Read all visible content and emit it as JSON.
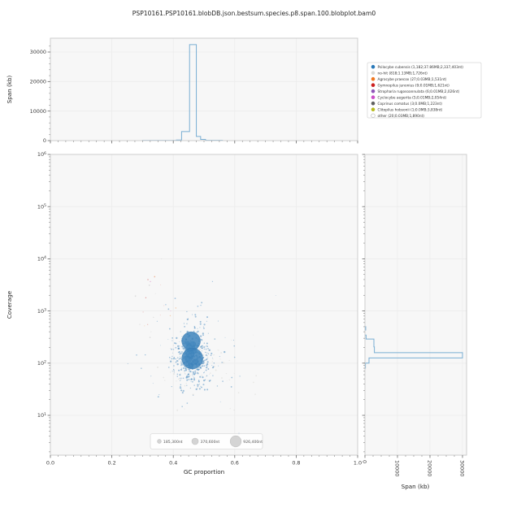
{
  "title": "PSP10161.PSP10161.blobDB.json.bestsum.species.p8.span.100.blobplot.bam0",
  "colors": {
    "panel_bg": "#f7f7f7",
    "grid": "#ececec",
    "spine": "#cccccc",
    "tick": "#8a8a8a",
    "tick_label": "#3b3b3b",
    "text": "#262626",
    "hist_line": "#79aed3",
    "blob_blue": "#3d84bc",
    "blob_edge": "#2a6ca5"
  },
  "axes": {
    "gc": {
      "label": "GC proportion",
      "range": [
        0.0,
        1.0
      ],
      "ticks": [
        0.0,
        0.2,
        0.4,
        0.6,
        0.8,
        1.0
      ],
      "minor_step": 0.025
    },
    "coverage": {
      "label": "Coverage",
      "log_range": [
        0.237,
        6
      ],
      "tick_exponents": [
        1,
        2,
        3,
        4,
        5,
        6
      ]
    },
    "span_top": {
      "label": "Span (kb)",
      "range": [
        0,
        34700
      ],
      "ticks": [
        0,
        10000,
        20000,
        30000
      ],
      "minor_step": 2000
    },
    "span_right": {
      "label": "Span (kb)",
      "range": [
        0,
        31250
      ],
      "ticks": [
        0,
        10000,
        20000,
        30000
      ],
      "minor_step": 2500
    }
  },
  "chart_data": [
    {
      "type": "bar",
      "subtype": "step-histogram",
      "panel": "top",
      "title": "Span (kb) summed per GC bin",
      "xlabel": "GC proportion",
      "ylabel": "Span (kb)",
      "ylim": [
        0,
        34700
      ],
      "grid": true,
      "bins": [
        {
          "x0": 0.3,
          "x1": 0.41,
          "value": 60
        },
        {
          "x0": 0.41,
          "x1": 0.427,
          "value": 220
        },
        {
          "x0": 0.427,
          "x1": 0.453,
          "value": 3050
        },
        {
          "x0": 0.453,
          "x1": 0.475,
          "value": 32500
        },
        {
          "x0": 0.475,
          "x1": 0.489,
          "value": 1400
        },
        {
          "x0": 0.489,
          "x1": 0.505,
          "value": 420
        },
        {
          "x0": 0.505,
          "x1": 0.56,
          "value": 120
        }
      ]
    },
    {
      "type": "scatter",
      "panel": "main",
      "title": "Blobs: GC proportion vs Coverage, marker area ~ span",
      "xlabel": "GC proportion",
      "ylabel": "Coverage",
      "xlim": [
        0.0,
        1.0
      ],
      "ylog": true,
      "grid": true,
      "seed": 42,
      "bubbles": [
        {
          "gc": 0.458,
          "cov": 265,
          "r": 11.5
        },
        {
          "gc": 0.462,
          "cov": 123,
          "r": 13.0
        },
        {
          "gc": 0.452,
          "cov": 195,
          "r": 4.5
        },
        {
          "gc": 0.466,
          "cov": 170,
          "r": 3.5
        },
        {
          "gc": 0.449,
          "cov": 118,
          "r": 4.0
        },
        {
          "gc": 0.471,
          "cov": 108,
          "r": 3.0
        },
        {
          "gc": 0.458,
          "cov": 92,
          "r": 3.0
        },
        {
          "gc": 0.455,
          "cov": 150,
          "r": 5.0
        },
        {
          "gc": 0.464,
          "cov": 230,
          "r": 3.5
        },
        {
          "gc": 0.447,
          "cov": 240,
          "r": 2.5
        }
      ],
      "clouds": [
        {
          "name": "nohit-dots",
          "n": 70,
          "gc_mean": 0.5,
          "gc_sd": 0.08,
          "logcov_mean": 1.9,
          "logcov_sd": 0.35,
          "r_min": 0.4,
          "r_max": 1.0,
          "color": "#d9d9d6",
          "opacity": 0.55
        },
        {
          "name": "misc-dots",
          "n": 22,
          "gc_mean": 0.34,
          "gc_sd": 0.045,
          "logcov_mean": 3.2,
          "logcov_sd": 0.4,
          "r_min": 0.4,
          "r_max": 0.9,
          "color": "mixed",
          "opacity": 0.55
        },
        {
          "name": "wide-dots",
          "n": 90,
          "gc_mean": 0.46,
          "gc_sd": 0.07,
          "logcov_mean": 2.2,
          "logcov_sd": 0.6,
          "r_min": 0.4,
          "r_max": 1.1,
          "color": "#3d84bc",
          "opacity": 0.45
        },
        {
          "name": "core-dots",
          "n": 380,
          "gc_mean": 0.463,
          "gc_sd": 0.03,
          "logcov_mean": 2.08,
          "logcov_sd": 0.28,
          "r_min": 0.4,
          "r_max": 1.2,
          "color": "#3d84bc",
          "opacity": 0.5
        }
      ],
      "misc_colors": [
        "#e59a93",
        "#f2b079",
        "#c9c9c9",
        "#d98fc7",
        "#cc4444"
      ]
    },
    {
      "type": "bar",
      "subtype": "step-histogram",
      "panel": "right",
      "title": "Span (kb) summed per Coverage bin",
      "xlabel": "Span (kb)",
      "ylabel": "Coverage",
      "xlim": [
        0,
        31250
      ],
      "grid": true,
      "bins": [
        {
          "cov0": 430,
          "cov1": 500,
          "value": 230
        },
        {
          "cov0": 290,
          "cov1": 345,
          "value": 350
        },
        {
          "cov0": 205,
          "cov1": 290,
          "value": 2750
        },
        {
          "cov0": 159,
          "cov1": 205,
          "value": 2900
        },
        {
          "cov0": 126,
          "cov1": 159,
          "value": 30000
        },
        {
          "cov0": 100,
          "cov1": 126,
          "value": 1250
        },
        {
          "cov0": 80,
          "cov1": 100,
          "value": 150
        }
      ]
    }
  ],
  "legend": {
    "position": "top-right",
    "entries": [
      {
        "label": "Psilocybe cubensis (1,182;37.86MB;2,337,403nt)",
        "color": "#2878b8",
        "filled": true
      },
      {
        "label": "no-hit (818;1.13MB;1,726nt)",
        "color": "#dcdcd8",
        "filled": true
      },
      {
        "label": "Agrocybe praecox (27;0.03MB;1,531nt)",
        "color": "#f07820",
        "filled": true
      },
      {
        "label": "Gymnopilus junonius (9;0.01MB;1,621nt)",
        "color": "#cc2020",
        "filled": true
      },
      {
        "label": "Stropharia rugosoannulata (6;0.01MB;2,026nt)",
        "color": "#9055b8",
        "filled": true
      },
      {
        "label": "Cyclocybe aegerita (5;0.01MB;2,054nt)",
        "color": "#cc50c8",
        "filled": true
      },
      {
        "label": "Coprinus comatus (3;0.0MB;1,223nt)",
        "color": "#606060",
        "filled": true
      },
      {
        "label": "Clitopilus hobsonii (1;0.0MB;3,838nt)",
        "color": "#b8bc20",
        "filled": true
      },
      {
        "label": "other (20;0.03MB;1,890nt)",
        "color": "#ffffff",
        "filled": false
      }
    ]
  },
  "size_legend": {
    "items": [
      {
        "label": "185,300nt",
        "r": 2.4
      },
      {
        "label": "370,600nt",
        "r": 4.0
      },
      {
        "label": "926,400nt",
        "r": 6.8
      }
    ]
  }
}
